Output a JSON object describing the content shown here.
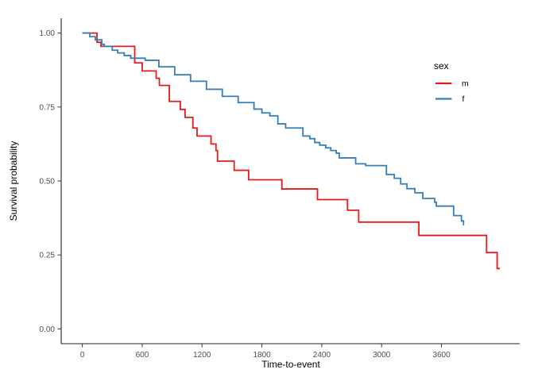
{
  "chart_data": {
    "type": "line",
    "subtype": "kaplan-meier-step",
    "title": "",
    "xlabel": "Time-to-event",
    "ylabel": "Survival probability",
    "xlim": [
      -212,
      4400
    ],
    "ylim": [
      -0.05,
      1.05
    ],
    "x_ticks": [
      0,
      600,
      1200,
      1800,
      2400,
      3000,
      3600
    ],
    "x_tick_labels": [
      "0",
      "600",
      "1200",
      "1800",
      "2400",
      "3000",
      "3600"
    ],
    "y_ticks": [
      0.0,
      0.25,
      0.5,
      0.75,
      1.0
    ],
    "y_tick_labels": [
      "0.00",
      "0.25",
      "0.50",
      "0.75",
      "1.00"
    ],
    "grid": false,
    "legend": {
      "title": "sex",
      "position": "right"
    },
    "series": [
      {
        "name": "m",
        "color": "#E41A1C",
        "end_time": 4185,
        "points": [
          [
            0,
            1.0
          ],
          [
            147,
            0.969
          ],
          [
            187,
            0.955
          ],
          [
            525,
            0.899
          ],
          [
            600,
            0.872
          ],
          [
            740,
            0.847
          ],
          [
            772,
            0.823
          ],
          [
            872,
            0.769
          ],
          [
            982,
            0.742
          ],
          [
            1030,
            0.715
          ],
          [
            1108,
            0.679
          ],
          [
            1150,
            0.652
          ],
          [
            1290,
            0.625
          ],
          [
            1340,
            0.603
          ],
          [
            1355,
            0.567
          ],
          [
            1522,
            0.536
          ],
          [
            1667,
            0.504
          ],
          [
            2000,
            0.473
          ],
          [
            2357,
            0.437
          ],
          [
            2658,
            0.401
          ],
          [
            2770,
            0.361
          ],
          [
            3373,
            0.316
          ],
          [
            4052,
            0.258
          ],
          [
            4158,
            0.204
          ]
        ]
      },
      {
        "name": "f",
        "color": "#377EB8",
        "end_time": 3825,
        "points": [
          [
            0,
            1.0
          ],
          [
            75,
            0.988
          ],
          [
            130,
            0.977
          ],
          [
            195,
            0.962
          ],
          [
            220,
            0.955
          ],
          [
            300,
            0.942
          ],
          [
            355,
            0.933
          ],
          [
            420,
            0.924
          ],
          [
            485,
            0.915
          ],
          [
            630,
            0.908
          ],
          [
            767,
            0.886
          ],
          [
            926,
            0.859
          ],
          [
            1085,
            0.837
          ],
          [
            1244,
            0.81
          ],
          [
            1403,
            0.786
          ],
          [
            1562,
            0.765
          ],
          [
            1721,
            0.743
          ],
          [
            1800,
            0.73
          ],
          [
            1880,
            0.72
          ],
          [
            1960,
            0.693
          ],
          [
            2038,
            0.679
          ],
          [
            2211,
            0.652
          ],
          [
            2280,
            0.643
          ],
          [
            2330,
            0.63
          ],
          [
            2380,
            0.621
          ],
          [
            2440,
            0.612
          ],
          [
            2490,
            0.603
          ],
          [
            2545,
            0.594
          ],
          [
            2575,
            0.578
          ],
          [
            2740,
            0.558
          ],
          [
            2840,
            0.552
          ],
          [
            3048,
            0.522
          ],
          [
            3127,
            0.509
          ],
          [
            3191,
            0.49
          ],
          [
            3254,
            0.474
          ],
          [
            3334,
            0.46
          ],
          [
            3413,
            0.441
          ],
          [
            3532,
            0.428
          ],
          [
            3548,
            0.415
          ],
          [
            3722,
            0.383
          ],
          [
            3800,
            0.365
          ],
          [
            3821,
            0.352
          ]
        ]
      }
    ]
  }
}
